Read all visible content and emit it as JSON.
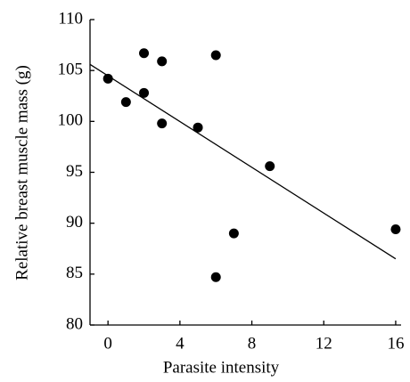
{
  "chart_data": {
    "type": "scatter",
    "x_label": "Parasite intensity",
    "y_label": "Relative breast muscle mass (g)",
    "x": [
      0,
      1,
      2,
      2,
      3,
      3,
      5,
      6,
      6,
      7,
      9,
      16
    ],
    "y": [
      104.2,
      101.9,
      106.7,
      102.8,
      105.9,
      99.8,
      99.4,
      106.5,
      84.7,
      89.0,
      95.6,
      89.4
    ],
    "color": "#000000",
    "fit_line": {
      "x": [
        -1,
        16
      ],
      "y": [
        105.6,
        86.5
      ]
    },
    "xlim": [
      -1,
      16.3
    ],
    "ylim": [
      80,
      110
    ],
    "xticks": [
      0,
      4,
      8,
      12,
      16
    ],
    "yticks": [
      80,
      85,
      90,
      95,
      100,
      105,
      110
    ],
    "grid": false
  }
}
